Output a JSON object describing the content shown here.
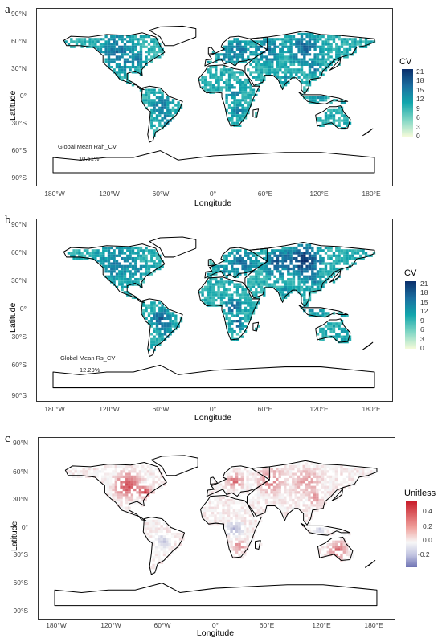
{
  "panels": [
    {
      "letter": "a",
      "y_ticks": [
        "90°N",
        "60°N",
        "30°N",
        "0°",
        "30°S",
        "60°S",
        "90°S"
      ],
      "x_ticks": [
        "180°W",
        "120°W",
        "60°W",
        "0°",
        "60°E",
        "120°E",
        "180°E"
      ],
      "xlabel": "Longitude",
      "ylabel": "Latitude",
      "legend_title": "CV",
      "legend_labels": [
        "21",
        "18",
        "15",
        "12",
        "9",
        "6",
        "3",
        "0"
      ],
      "annotation": "Global Mean Rah_CV",
      "annotation_value": "10.51%",
      "colors": [
        "#0b2f6b",
        "#12a6ac",
        "#f5fbd9"
      ]
    },
    {
      "letter": "b",
      "y_ticks": [
        "90°N",
        "60°N",
        "30°N",
        "0°",
        "30°S",
        "60°S",
        "90°S"
      ],
      "x_ticks": [
        "180°W",
        "120°W",
        "60°W",
        "0°",
        "60°E",
        "120°E",
        "180°E"
      ],
      "xlabel": "Longitude",
      "ylabel": "Latitude",
      "legend_title": "CV",
      "legend_labels": [
        "21",
        "18",
        "15",
        "12",
        "9",
        "6",
        "3",
        "0"
      ],
      "annotation": "Global Mean Rs_CV",
      "annotation_value": "12.29%",
      "colors": [
        "#0b2f6b",
        "#12a6ac",
        "#f5fbd9"
      ]
    },
    {
      "letter": "c",
      "y_ticks": [
        "90°N",
        "60°N",
        "30°N",
        "0°",
        "30°S",
        "60°S",
        "90°S"
      ],
      "x_ticks": [
        "180°W",
        "120°W",
        "60°W",
        "0°",
        "60°E",
        "120°E",
        "180°E"
      ],
      "xlabel": "Longitude",
      "ylabel": "Latitude",
      "legend_title": "Unitless",
      "legend_labels": [
        "0.4",
        "0.2",
        "0.0",
        "-0.2"
      ],
      "annotation": "",
      "annotation_value": "",
      "colors": [
        "#c81d2a",
        "#f7f7f7",
        "#6f73b3"
      ]
    }
  ]
}
